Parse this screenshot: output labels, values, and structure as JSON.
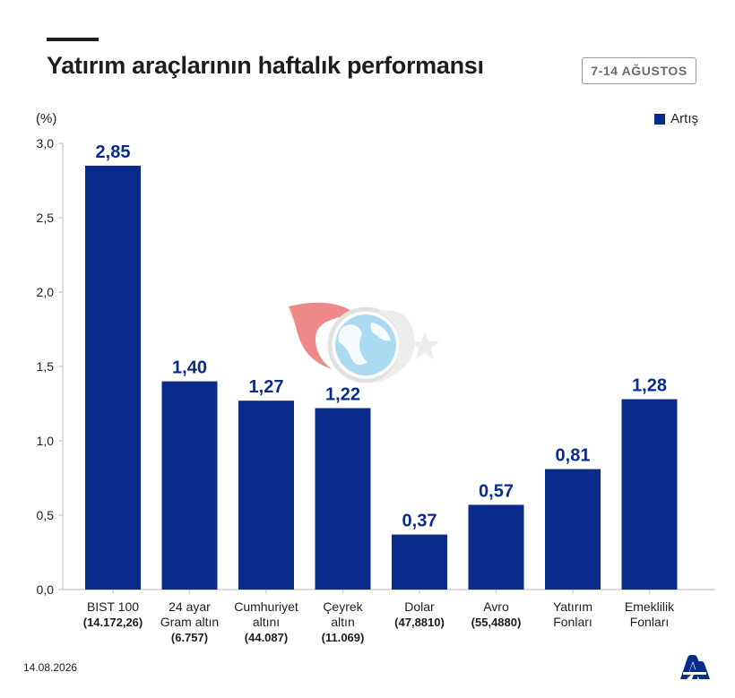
{
  "header": {
    "title": "Yatırım araçlarının haftalık performansı",
    "date_range": "7-14 AĞUSTOS"
  },
  "footer": {
    "date": "14.08.2026"
  },
  "colors": {
    "bar": "#0a2b8c",
    "value_label": "#0a2b8c",
    "axis": "#c8c8c8",
    "text": "#1d1d1b"
  },
  "chart_data": {
    "type": "bar",
    "y_unit_label": "(%)",
    "legend": [
      "Artış"
    ],
    "legend_position": "top-right",
    "ylim": [
      0,
      3.0
    ],
    "yticks": [
      "0,0",
      "0,5",
      "1,0",
      "1,5",
      "2,0",
      "2,5",
      "3,0"
    ],
    "grid": false,
    "categories": [
      [
        "BIST 100",
        "(14.172,26)"
      ],
      [
        "24 ayar",
        "Gram altın",
        "(6.757)"
      ],
      [
        "Cumhuriyet",
        "altını",
        "(44.087)"
      ],
      [
        "Çeyrek",
        "altın",
        "(11.069)"
      ],
      [
        "Dolar",
        "(47,8810)"
      ],
      [
        "Avro",
        "(55,4880)"
      ],
      [
        "Yatırım",
        "Fonları"
      ],
      [
        "Emeklilik",
        "Fonları"
      ]
    ],
    "series": [
      {
        "name": "Artış",
        "values": [
          2.85,
          1.4,
          1.27,
          1.22,
          0.37,
          0.57,
          0.81,
          1.28
        ],
        "labels": [
          "2,85",
          "1,40",
          "1,27",
          "1,22",
          "0,37",
          "0,57",
          "0,81",
          "1,28"
        ]
      }
    ]
  }
}
